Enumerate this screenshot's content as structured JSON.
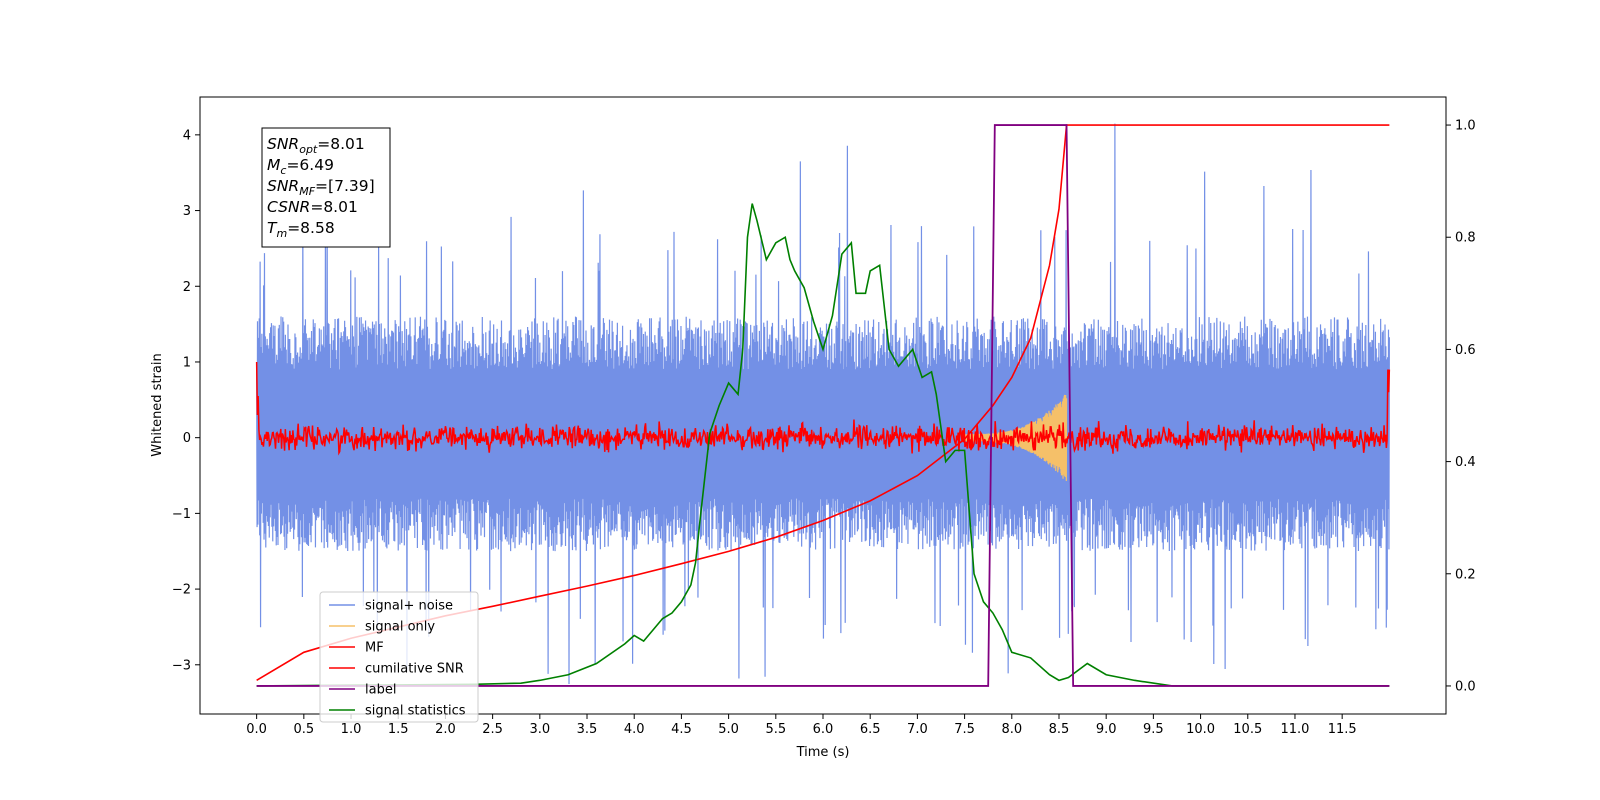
{
  "chart_data": {
    "type": "line",
    "xlabel": "Time (s)",
    "ylabel": "Whitened strain",
    "xlim": [
      -0.6,
      12.6
    ],
    "ylim": [
      -3.65,
      4.5
    ],
    "y2lim": [
      -0.05,
      1.05
    ],
    "xticks": [
      "0.0",
      "0.5",
      "1.0",
      "1.5",
      "2.0",
      "2.5",
      "3.0",
      "3.5",
      "4.0",
      "4.5",
      "5.0",
      "5.5",
      "6.0",
      "6.5",
      "7.0",
      "7.5",
      "8.0",
      "8.5",
      "9.0",
      "9.5",
      "10.0",
      "10.5",
      "11.0",
      "11.5"
    ],
    "yticks": [
      "4",
      "3",
      "2",
      "1",
      "0",
      "−1",
      "−2",
      "−3"
    ],
    "y2ticks": [
      "1.0",
      "0.8",
      "0.6",
      "0.4",
      "0.2",
      "0.0"
    ],
    "grid": false,
    "legend_position": "lower-left",
    "colors": {
      "signal_noise": "#7390e6",
      "signal_only": "#f5c069",
      "mf": "#ff0000",
      "cumulative_snr": "#ff0000",
      "label": "#800080",
      "signal_statistics": "#008000"
    },
    "noise_band": {
      "x_range": [
        0.0,
        12.0
      ],
      "typical_range": [
        -1.5,
        1.6
      ],
      "spike_max": 4.17,
      "spike_min": -3.3
    },
    "signal_only_band": {
      "x_range": [
        7.5,
        8.58
      ],
      "envelope_start": 0.05,
      "envelope_end": 0.6
    },
    "mf_band": {
      "x_range": [
        0.0,
        12.0
      ],
      "center": 0.0,
      "amplitude": 0.2
    },
    "cumulative_snr": {
      "x": [
        0.0,
        0.5,
        1.0,
        1.5,
        2.0,
        2.5,
        3.0,
        3.5,
        4.0,
        4.5,
        5.0,
        5.5,
        6.0,
        6.5,
        7.0,
        7.5,
        7.8,
        8.0,
        8.2,
        8.4,
        8.5,
        8.58,
        12.0
      ],
      "y": [
        0.01,
        0.06,
        0.085,
        0.105,
        0.125,
        0.142,
        0.16,
        0.178,
        0.197,
        0.218,
        0.24,
        0.265,
        0.295,
        0.33,
        0.375,
        0.44,
        0.5,
        0.55,
        0.62,
        0.75,
        0.85,
        1.0,
        1.0
      ]
    },
    "label_series": {
      "x": [
        0.0,
        7.75,
        7.82,
        8.58,
        8.65,
        12.0
      ],
      "y": [
        0.0,
        0.0,
        1.0,
        1.0,
        0.0,
        0.0
      ]
    },
    "signal_statistics": {
      "x": [
        0.0,
        2.3,
        2.8,
        3.0,
        3.3,
        3.6,
        3.9,
        4.0,
        4.1,
        4.2,
        4.3,
        4.4,
        4.5,
        4.6,
        4.65,
        4.7,
        4.8,
        4.9,
        5.0,
        5.1,
        5.15,
        5.2,
        5.25,
        5.3,
        5.4,
        5.5,
        5.6,
        5.65,
        5.7,
        5.8,
        5.9,
        6.0,
        6.1,
        6.2,
        6.3,
        6.35,
        6.45,
        6.5,
        6.6,
        6.7,
        6.8,
        6.85,
        6.95,
        7.05,
        7.15,
        7.2,
        7.3,
        7.4,
        7.5,
        7.6,
        7.7,
        7.8,
        7.9,
        8.0,
        8.2,
        8.4,
        8.5,
        8.6,
        8.8,
        9.0,
        9.3,
        9.7,
        12.0
      ],
      "y": [
        0.0,
        0.003,
        0.005,
        0.01,
        0.02,
        0.04,
        0.075,
        0.09,
        0.08,
        0.1,
        0.12,
        0.13,
        0.15,
        0.18,
        0.22,
        0.3,
        0.45,
        0.5,
        0.54,
        0.52,
        0.6,
        0.8,
        0.86,
        0.83,
        0.76,
        0.79,
        0.8,
        0.76,
        0.74,
        0.71,
        0.65,
        0.6,
        0.66,
        0.77,
        0.79,
        0.7,
        0.7,
        0.74,
        0.75,
        0.6,
        0.57,
        0.58,
        0.6,
        0.55,
        0.56,
        0.52,
        0.4,
        0.42,
        0.42,
        0.2,
        0.15,
        0.13,
        0.1,
        0.06,
        0.05,
        0.02,
        0.01,
        0.015,
        0.04,
        0.02,
        0.01,
        0.0,
        0.0
      ]
    },
    "info_box": [
      {
        "name": "SNR",
        "sub": "opt",
        "value": "=8.01"
      },
      {
        "name": "M",
        "sub": "c",
        "value": "=6.49"
      },
      {
        "name": "SNR",
        "sub": "MF",
        "value": "=[7.39]"
      },
      {
        "name": "CSNR",
        "sub": "",
        "value": "=8.01"
      },
      {
        "name": "T",
        "sub": "m",
        "value": "=8.58"
      }
    ],
    "legend": [
      {
        "label": "signal+ noise",
        "color": "#7390e6"
      },
      {
        "label": "signal only",
        "color": "#f5c069"
      },
      {
        "label": "MF",
        "color": "#ff0000"
      },
      {
        "label": "cumilative SNR",
        "color": "#ff0000"
      },
      {
        "label": "label",
        "color": "#800080"
      },
      {
        "label": "signal statistics",
        "color": "#008000"
      }
    ]
  }
}
